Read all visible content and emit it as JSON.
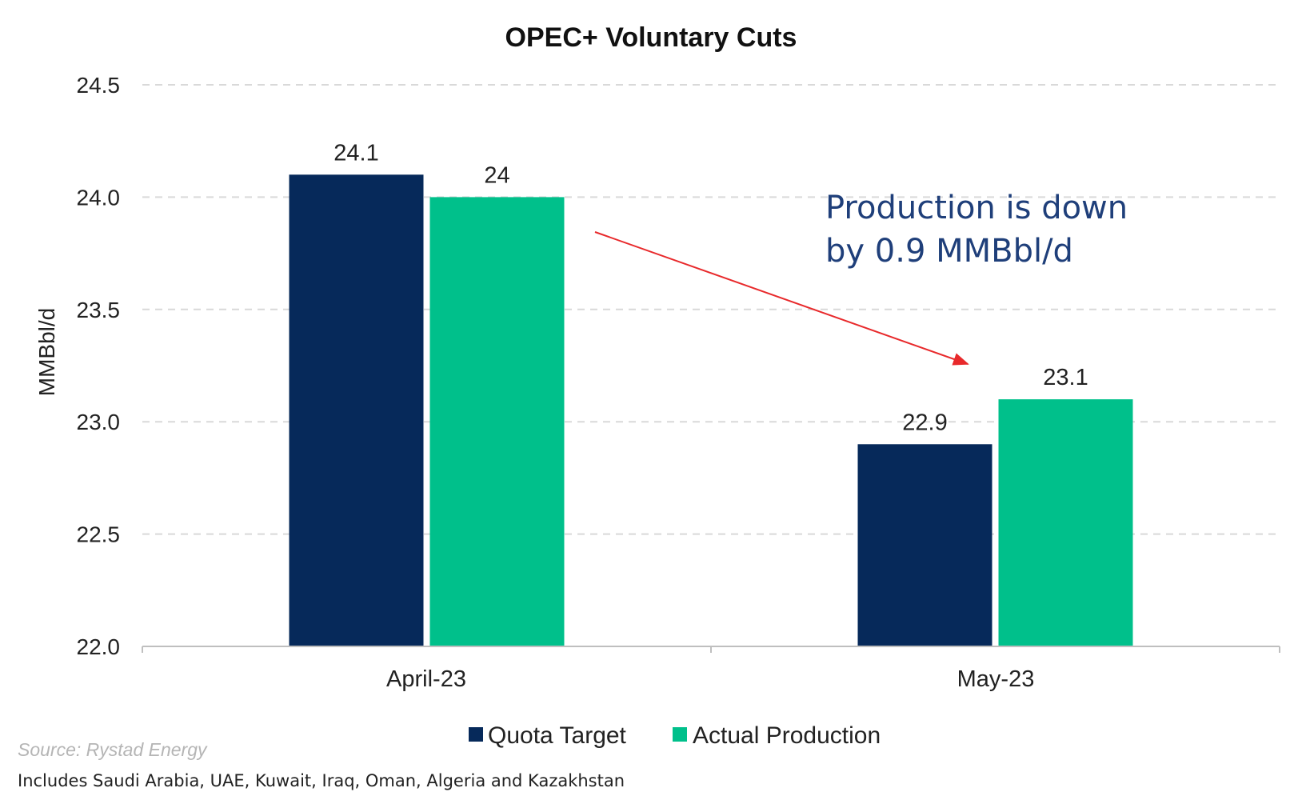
{
  "chart_data": {
    "type": "bar",
    "title": "OPEC+ Voluntary Cuts",
    "ylabel": "MMBbl/d",
    "xlabel": "",
    "categories": [
      "April-23",
      "May-23"
    ],
    "series": [
      {
        "name": "Quota Target",
        "values": [
          24.1,
          22.9
        ],
        "labels": [
          "24.1",
          "22.9"
        ],
        "color": "#06295a"
      },
      {
        "name": "Actual Production",
        "values": [
          24.0,
          23.1
        ],
        "labels": [
          "24",
          "23.1"
        ],
        "color": "#00c08b"
      }
    ],
    "ylim": [
      22.0,
      24.5
    ],
    "yticks": [
      "22.0",
      "22.5",
      "23.0",
      "23.5",
      "24.0",
      "24.5"
    ],
    "grid": true,
    "legend_position": "bottom",
    "annotation": {
      "lines": [
        "Production is down",
        "by 0.9 MMBbl/d"
      ],
      "color": "#1f3f7a",
      "arrow_color": "#e8292b"
    },
    "source": "Source: Rystad Energy",
    "note": "Includes Saudi Arabia, UAE, Kuwait, Iraq, Oman, Algeria and Kazakhstan"
  }
}
